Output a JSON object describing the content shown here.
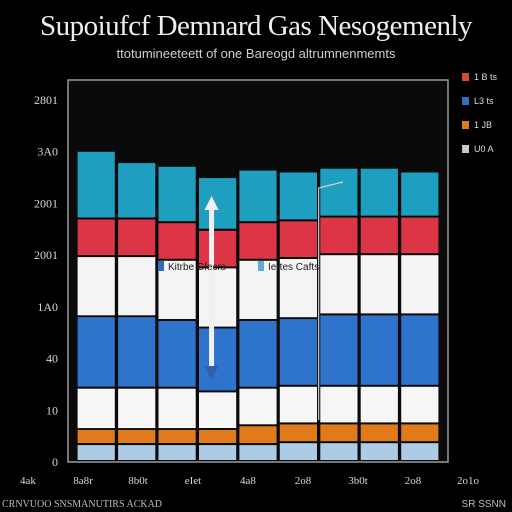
{
  "chart_data": {
    "type": "bar",
    "title": "Supoiufcf Demnard Gas Nesogemenly",
    "subtitle": "ttotumineeteett of one Bareogd altrumnenmemts",
    "y_tick_labels": [
      "0",
      "10",
      "40",
      "1A0",
      "2001",
      "2001",
      "3A0",
      "2801"
    ],
    "x_tick_labels": [
      "4ak",
      "8a8r",
      "8b0t",
      "eIet",
      "4a8",
      "2o8",
      "3b0t",
      "2o8",
      "2o1o"
    ],
    "legend": [
      {
        "label": "1 B ts",
        "color": "#d84a2c"
      },
      {
        "label": "L3 ts",
        "color": "#2f6fc0"
      },
      {
        "label": "1 JB",
        "color": "#e07a1a"
      },
      {
        "label": "U0 A",
        "color": "#c8c8c8"
      }
    ],
    "inline_labels": [
      {
        "text": "Kitrbe Cfecrs",
        "color": "#2f6fc0"
      },
      {
        "text": "Iertes Cafts",
        "color": "#5ab0d8"
      }
    ],
    "series_order": [
      "lightblue",
      "orange",
      "white",
      "blue",
      "white2",
      "red",
      "teal"
    ],
    "series_colors": {
      "lightblue": "#aecbe6",
      "orange": "#e07a1a",
      "white": "#f6f6f6",
      "blue": "#2f74cc",
      "white2": "#f4f4f4",
      "red": "#dc3545",
      "teal": "#1e9fc0"
    },
    "series_values": {
      "lightblue": [
        0.45,
        0.45,
        0.45,
        0.45,
        0.45,
        0.5,
        0.5,
        0.5,
        0.5
      ],
      "orange": [
        0.4,
        0.4,
        0.4,
        0.4,
        0.5,
        0.5,
        0.5,
        0.5,
        0.5
      ],
      "white": [
        1.1,
        1.1,
        1.1,
        1.0,
        1.0,
        1.0,
        1.0,
        1.0,
        1.0
      ],
      "blue": [
        1.9,
        1.9,
        1.8,
        1.7,
        1.8,
        1.8,
        1.9,
        1.9,
        1.9
      ],
      "white2": [
        1.6,
        1.6,
        1.6,
        1.6,
        1.6,
        1.6,
        1.6,
        1.6,
        1.6
      ],
      "red": [
        1.0,
        1.0,
        1.0,
        1.0,
        1.0,
        1.0,
        1.0,
        1.0,
        1.0
      ],
      "teal": [
        1.8,
        1.5,
        1.5,
        1.4,
        1.4,
        1.3,
        1.3,
        1.3,
        1.2
      ]
    },
    "ylim": [
      0,
      10
    ],
    "grid": false,
    "legend_placement": "right"
  },
  "footer": {
    "left": "CRNVUOO SNSMANUTIRS ACKAD",
    "right": "SR SSNN"
  }
}
